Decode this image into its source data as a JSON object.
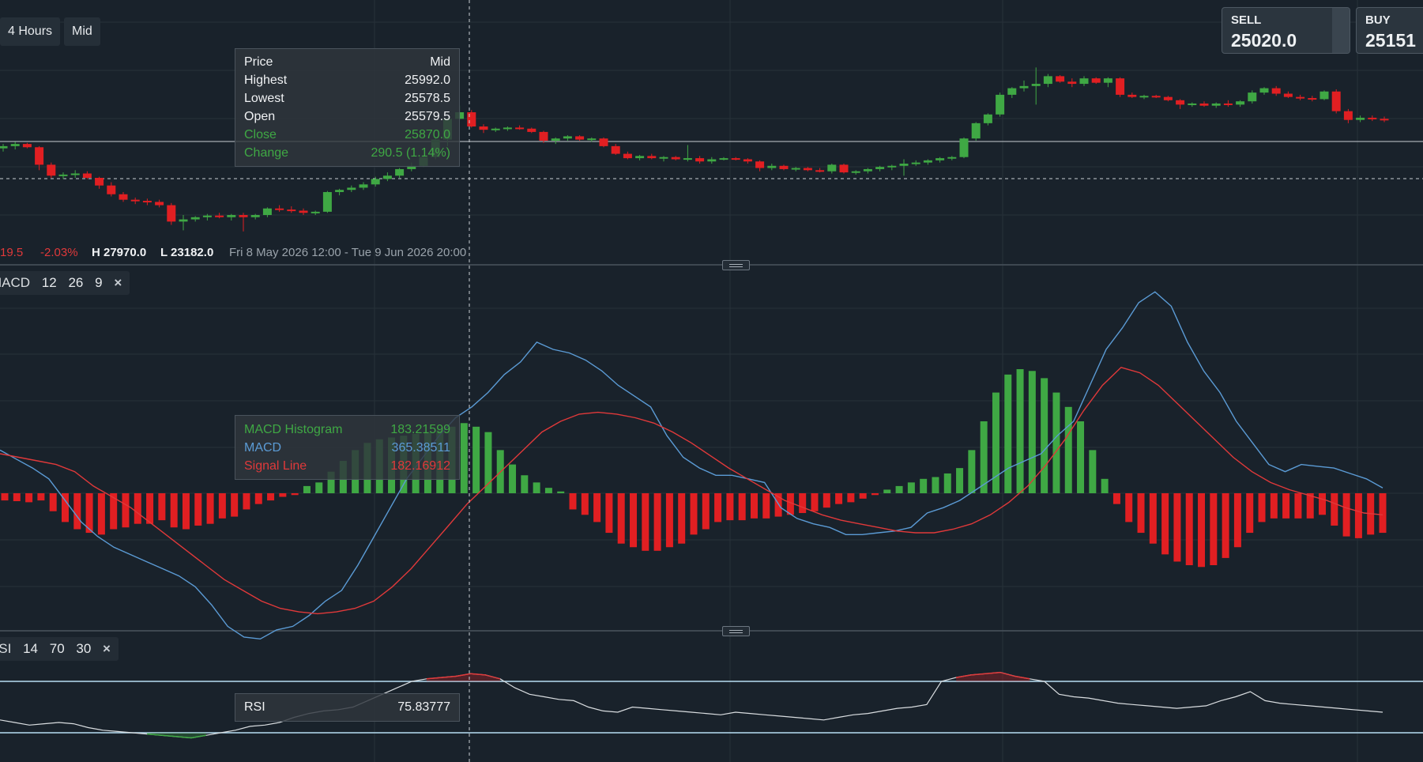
{
  "toolbar": {
    "timeframe_label": "4 Hours",
    "price_type_label": "Mid"
  },
  "trade": {
    "sell_label": "SELL",
    "sell_price": "25020.0",
    "buy_label": "BUY",
    "buy_price": "25151"
  },
  "price_tooltip": {
    "header_left": "Price",
    "header_right": "Mid",
    "rows": [
      {
        "label": "Highest",
        "value": "25992.0"
      },
      {
        "label": "Lowest",
        "value": "25578.5"
      },
      {
        "label": "Open",
        "value": "25579.5"
      },
      {
        "label": "Close",
        "value": "25870.0"
      },
      {
        "label": "Change",
        "value": "290.5 (1.14%)"
      }
    ]
  },
  "stats": {
    "change_partial": "19.5",
    "change_pct": "-2.03%",
    "high": "H 27970.0",
    "low": "L 23182.0",
    "range": "Fri 8 May 2026 12:00 - Tue 9 Jun 2026 20:00"
  },
  "macd_indicator": {
    "label": "MACD",
    "fast": "12",
    "slow": "26",
    "signal": "9",
    "close_icon": "×"
  },
  "macd_tooltip": {
    "rows": [
      {
        "label": "MACD Histogram",
        "value": "183.21599"
      },
      {
        "label": "MACD",
        "value": "365.38511"
      },
      {
        "label": "Signal Line",
        "value": "182.16912"
      }
    ]
  },
  "rsi_indicator": {
    "label": "RSI",
    "period": "14",
    "upper": "70",
    "lower": "30",
    "close_icon": "×"
  },
  "rsi_tooltip": {
    "label": "RSI",
    "value": "75.83777"
  },
  "colors": {
    "background": "#19222b",
    "up": "#3fa844",
    "down": "#e11f22",
    "macd_line": "#5b9bd5",
    "signal_line": "#e0393a",
    "rsi_line": "#d9dde0",
    "band_line": "#b8def3",
    "grid": "#27313a"
  },
  "icons": {
    "close": "close-icon",
    "pane_handle": "drag-handle-icon"
  },
  "chart_data": {
    "type": "candlestick",
    "candles": [
      [
        25600,
        25640,
        25570,
        25620
      ],
      [
        25620,
        25660,
        25590,
        25640
      ],
      [
        25640,
        25650,
        25600,
        25610
      ],
      [
        25610,
        25620,
        25400,
        25450
      ],
      [
        25450,
        25470,
        25330,
        25350
      ],
      [
        25350,
        25380,
        25320,
        25360
      ],
      [
        25360,
        25400,
        25330,
        25370
      ],
      [
        25370,
        25390,
        25320,
        25330
      ],
      [
        25330,
        25340,
        25230,
        25260
      ],
      [
        25260,
        25290,
        25160,
        25180
      ],
      [
        25180,
        25200,
        25110,
        25130
      ],
      [
        25130,
        25150,
        25090,
        25120
      ],
      [
        25120,
        25140,
        25080,
        25110
      ],
      [
        25110,
        25130,
        25060,
        25080
      ],
      [
        25080,
        25100,
        24900,
        24930
      ],
      [
        24930,
        24990,
        24850,
        24950
      ],
      [
        24950,
        24980,
        24930,
        24970
      ],
      [
        24970,
        25000,
        24940,
        24985
      ],
      [
        24985,
        25010,
        24960,
        24970
      ],
      [
        24970,
        25000,
        24940,
        24990
      ],
      [
        24990,
        25010,
        24840,
        24970
      ],
      [
        24970,
        25000,
        24950,
        24990
      ],
      [
        24990,
        25060,
        24970,
        25050
      ],
      [
        25050,
        25080,
        25020,
        25040
      ],
      [
        25040,
        25070,
        25010,
        25030
      ],
      [
        25030,
        25050,
        24990,
        25010
      ],
      [
        25010,
        25030,
        24990,
        25020
      ],
      [
        25020,
        25210,
        25010,
        25200
      ],
      [
        25200,
        25230,
        25170,
        25220
      ],
      [
        25220,
        25260,
        25200,
        25240
      ],
      [
        25240,
        25290,
        25220,
        25270
      ],
      [
        25270,
        25340,
        25250,
        25320
      ],
      [
        25320,
        25380,
        25300,
        25350
      ],
      [
        25350,
        25420,
        25330,
        25410
      ],
      [
        25410,
        25470,
        25390,
        25440
      ],
      [
        25440,
        25540,
        25430,
        25520
      ],
      [
        25520,
        25700,
        25500,
        25680
      ],
      [
        25680,
        25880,
        25620,
        25870
      ],
      [
        25870,
        25992,
        25860,
        25930
      ],
      [
        25930,
        25950,
        25790,
        25800
      ],
      [
        25800,
        25820,
        25740,
        25770
      ],
      [
        25770,
        25790,
        25750,
        25780
      ],
      [
        25780,
        25800,
        25760,
        25790
      ],
      [
        25790,
        25810,
        25770,
        25780
      ],
      [
        25780,
        25790,
        25740,
        25750
      ],
      [
        25750,
        25760,
        25650,
        25670
      ],
      [
        25670,
        25700,
        25640,
        25690
      ],
      [
        25690,
        25720,
        25670,
        25710
      ],
      [
        25710,
        25720,
        25670,
        25680
      ],
      [
        25680,
        25700,
        25660,
        25690
      ],
      [
        25690,
        25700,
        25610,
        25620
      ],
      [
        25620,
        25640,
        25540,
        25550
      ],
      [
        25550,
        25570,
        25500,
        25510
      ],
      [
        25510,
        25540,
        25490,
        25530
      ],
      [
        25530,
        25550,
        25500,
        25510
      ],
      [
        25510,
        25530,
        25480,
        25520
      ],
      [
        25520,
        25530,
        25490,
        25500
      ],
      [
        25500,
        25630,
        25480,
        25510
      ],
      [
        25510,
        25530,
        25460,
        25480
      ],
      [
        25480,
        25520,
        25460,
        25500
      ],
      [
        25500,
        25520,
        25490,
        25510
      ],
      [
        25510,
        25520,
        25490,
        25500
      ],
      [
        25500,
        25510,
        25460,
        25480
      ],
      [
        25480,
        25490,
        25390,
        25420
      ],
      [
        25420,
        25460,
        25400,
        25440
      ],
      [
        25440,
        25450,
        25400,
        25410
      ],
      [
        25410,
        25430,
        25390,
        25420
      ],
      [
        25420,
        25430,
        25390,
        25400
      ],
      [
        25400,
        25420,
        25380,
        25390
      ],
      [
        25390,
        25460,
        25370,
        25450
      ],
      [
        25450,
        25460,
        25370,
        25380
      ],
      [
        25380,
        25400,
        25360,
        25390
      ],
      [
        25390,
        25420,
        25370,
        25410
      ],
      [
        25410,
        25440,
        25390,
        25430
      ],
      [
        25430,
        25450,
        25400,
        25440
      ],
      [
        25440,
        25500,
        25350,
        25460
      ],
      [
        25460,
        25490,
        25440,
        25470
      ],
      [
        25470,
        25500,
        25450,
        25490
      ],
      [
        25490,
        25520,
        25470,
        25510
      ],
      [
        25510,
        25530,
        25490,
        25520
      ],
      [
        25520,
        25700,
        25510,
        25690
      ],
      [
        25690,
        25840,
        25670,
        25830
      ],
      [
        25830,
        25920,
        25810,
        25910
      ],
      [
        25910,
        26110,
        25890,
        26090
      ],
      [
        26090,
        26160,
        26060,
        26150
      ],
      [
        26150,
        26220,
        26120,
        26170
      ],
      [
        26170,
        26340,
        26000,
        26190
      ],
      [
        26190,
        26280,
        26160,
        26260
      ],
      [
        26260,
        26270,
        26200,
        26210
      ],
      [
        26210,
        26240,
        26160,
        26190
      ],
      [
        26190,
        26260,
        26170,
        26240
      ],
      [
        26240,
        26250,
        26190,
        26200
      ],
      [
        26200,
        26250,
        26160,
        26240
      ],
      [
        26240,
        26250,
        26070,
        26090
      ],
      [
        26090,
        26110,
        26060,
        26070
      ],
      [
        26070,
        26090,
        26050,
        26080
      ],
      [
        26080,
        26090,
        26060,
        26070
      ],
      [
        26070,
        26080,
        26030,
        26040
      ],
      [
        26040,
        26050,
        25960,
        26000
      ],
      [
        26000,
        26020,
        25980,
        26010
      ],
      [
        26010,
        26030,
        25980,
        25990
      ],
      [
        25990,
        26020,
        25970,
        26010
      ],
      [
        26010,
        26040,
        25980,
        26000
      ],
      [
        26000,
        26040,
        25980,
        26030
      ],
      [
        26030,
        26130,
        26010,
        26110
      ],
      [
        26110,
        26160,
        26090,
        26150
      ],
      [
        26150,
        26170,
        26080,
        26100
      ],
      [
        26100,
        26120,
        26060,
        26070
      ],
      [
        26070,
        26090,
        26040,
        26060
      ],
      [
        26060,
        26080,
        26030,
        26050
      ],
      [
        26050,
        26130,
        26040,
        26120
      ],
      [
        26120,
        26140,
        25920,
        25940
      ],
      [
        25940,
        25960,
        25830,
        25860
      ],
      [
        25860,
        25900,
        25840,
        25880
      ],
      [
        25880,
        25900,
        25850,
        25870
      ],
      [
        25870,
        25890,
        25840,
        25860
      ]
    ],
    "macd_histogram": [
      -20,
      -22,
      -25,
      -20,
      -50,
      -80,
      -100,
      -110,
      -115,
      -100,
      -95,
      -85,
      -85,
      -75,
      -95,
      -100,
      -90,
      -85,
      -70,
      -65,
      -45,
      -30,
      -20,
      -10,
      -5,
      20,
      30,
      60,
      90,
      120,
      140,
      150,
      155,
      160,
      165,
      170,
      175,
      185,
      195,
      185,
      170,
      120,
      80,
      50,
      30,
      15,
      5,
      -45,
      -60,
      -80,
      -110,
      -140,
      -150,
      -160,
      -160,
      -150,
      -140,
      -115,
      -100,
      -80,
      -75,
      -75,
      -70,
      -70,
      -65,
      -60,
      -55,
      -50,
      -40,
      -30,
      -25,
      -15,
      -5,
      10,
      20,
      30,
      40,
      45,
      55,
      70,
      120,
      200,
      280,
      330,
      345,
      340,
      320,
      280,
      240,
      200,
      120,
      40,
      -30,
      -80,
      -110,
      -140,
      -170,
      -190,
      -200,
      -205,
      -200,
      -180,
      -150,
      -110,
      -80,
      -70,
      -70,
      -70,
      -70,
      -60,
      -90,
      -120,
      -125,
      -115,
      -110
    ],
    "macd_line": [
      120,
      95,
      70,
      40,
      -20,
      -80,
      -120,
      -150,
      -170,
      -190,
      -210,
      -230,
      -260,
      -310,
      -370,
      -400,
      -405,
      -380,
      -370,
      -340,
      -300,
      -270,
      -200,
      -120,
      -40,
      40,
      100,
      160,
      210,
      240,
      280,
      330,
      365,
      420,
      400,
      390,
      370,
      340,
      300,
      270,
      240,
      160,
      100,
      70,
      50,
      50,
      40,
      30,
      -40,
      -70,
      -85,
      -95,
      -115,
      -115,
      -110,
      -105,
      -95,
      -55,
      -40,
      -20,
      10,
      40,
      70,
      90,
      110,
      160,
      200,
      300,
      400,
      460,
      530,
      560,
      520,
      420,
      340,
      280,
      200,
      140,
      80,
      60,
      80,
      75,
      70,
      55,
      40,
      15
    ],
    "signal_line": [
      110,
      100,
      90,
      80,
      60,
      20,
      -10,
      -40,
      -80,
      -120,
      -160,
      -200,
      -240,
      -270,
      -300,
      -320,
      -330,
      -335,
      -330,
      -320,
      -300,
      -260,
      -210,
      -150,
      -90,
      -30,
      20,
      70,
      120,
      170,
      200,
      220,
      225,
      220,
      210,
      195,
      170,
      140,
      105,
      70,
      40,
      10,
      -20,
      -40,
      -60,
      -75,
      -85,
      -95,
      -105,
      -110,
      -110,
      -100,
      -85,
      -60,
      -25,
      20,
      80,
      150,
      230,
      300,
      350,
      335,
      300,
      250,
      200,
      150,
      100,
      60,
      30,
      10,
      -5,
      -20,
      -40,
      -55,
      -60
    ],
    "rsi": [
      40,
      38,
      36,
      37,
      38,
      37,
      34,
      32,
      31,
      30,
      29,
      28,
      27,
      26,
      28,
      30,
      32,
      35,
      36,
      38,
      42,
      45,
      47,
      48,
      50,
      55,
      60,
      65,
      70,
      72,
      73,
      74,
      76,
      75,
      72,
      65,
      60,
      58,
      56,
      55,
      50,
      47,
      46,
      50,
      49,
      48,
      47,
      46,
      45,
      44,
      46,
      45,
      44,
      43,
      42,
      41,
      40,
      42,
      44,
      45,
      47,
      49,
      50,
      52,
      70,
      73,
      75,
      76,
      77,
      74,
      72,
      70,
      60,
      58,
      57,
      55,
      53,
      52,
      51,
      50,
      49,
      50,
      51,
      55,
      58,
      62,
      55,
      53,
      52,
      51,
      50,
      49,
      48,
      47,
      46
    ]
  }
}
